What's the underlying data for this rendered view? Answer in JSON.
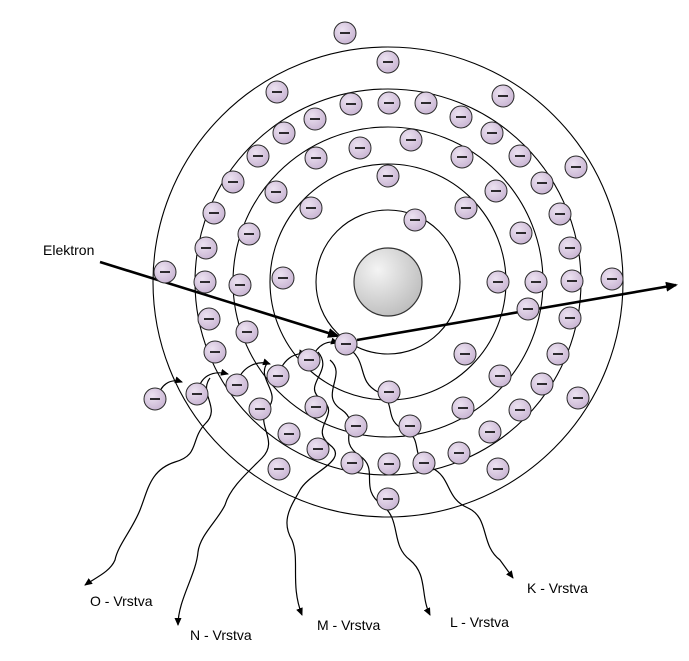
{
  "title_label": "Elektron",
  "shells": [
    {
      "name": "K",
      "label": "K - Vrstva"
    },
    {
      "name": "L",
      "label": "L - Vrstva"
    },
    {
      "name": "M",
      "label": "M - Vrstva"
    },
    {
      "name": "N",
      "label": "N - Vrstva"
    },
    {
      "name": "O",
      "label": "O - Vrstva"
    }
  ],
  "electron_symbol": "−",
  "colors": {
    "electron_fill": "#c8b4d2",
    "electron_highlight": "#ece2f1",
    "nucleus_fill": "#cfcfcf",
    "nucleus_highlight": "#f4f4f4",
    "lines": "#000000"
  },
  "icons": {
    "electron": "electron-circle-minus-icon",
    "nucleus": "nucleus-sphere-icon",
    "incoming": "arrow-right-icon",
    "outgoing": "arrow-right-icon",
    "emission": "wavy-arrow-icon"
  }
}
